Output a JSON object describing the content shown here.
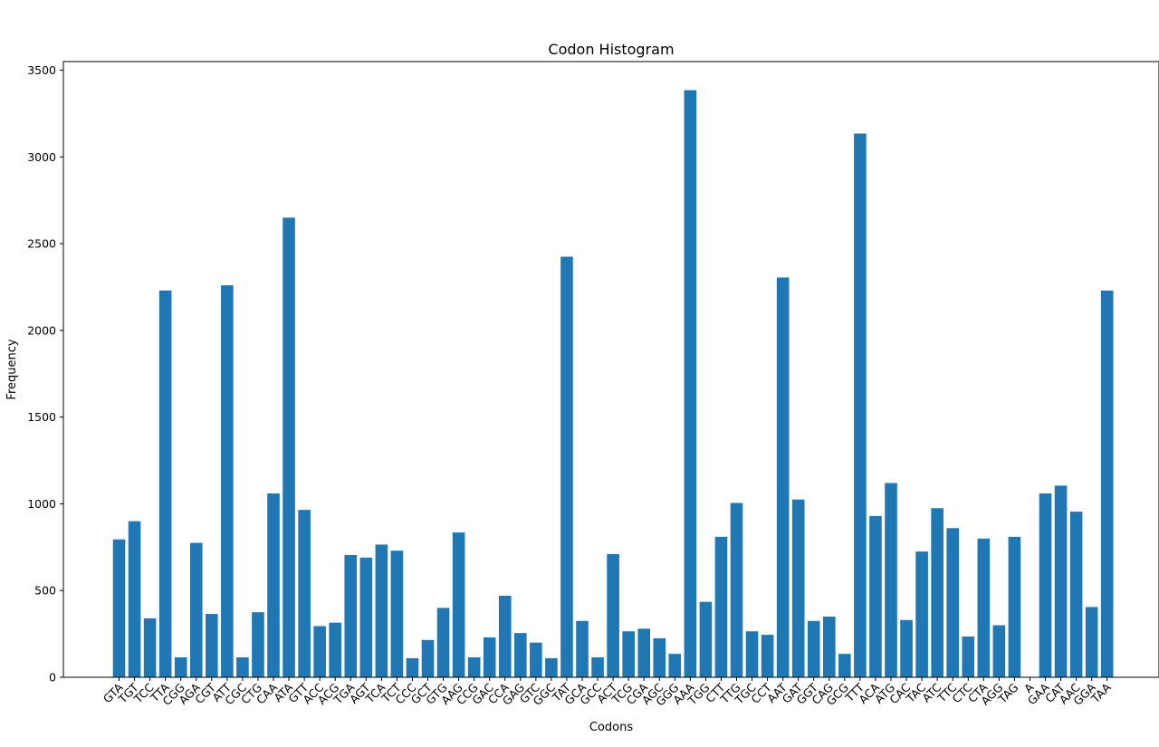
{
  "chart_data": {
    "type": "bar",
    "title": "Codon Histogram",
    "xlabel": "Codons",
    "ylabel": "Frequency",
    "ylim": [
      0,
      3550
    ],
    "yticks": [
      0,
      500,
      1000,
      1500,
      2000,
      2500,
      3000,
      3500
    ],
    "grid": false,
    "bar_color": "#1f77b4",
    "categories": [
      "GTA",
      "TGT",
      "TCC",
      "TTA",
      "CGG",
      "AGA",
      "CGT",
      "ATT",
      "CGC",
      "CTG",
      "CAA",
      "ATA",
      "GTT",
      "ACC",
      "ACG",
      "TGA",
      "AGT",
      "TCA",
      "TCT",
      "CCC",
      "GCT",
      "GTG",
      "AAG",
      "CCG",
      "GAC",
      "CCA",
      "GAG",
      "GTC",
      "GGC",
      "TAT",
      "GCA",
      "GCC",
      "ACT",
      "TCG",
      "CGA",
      "AGC",
      "GGG",
      "AAA",
      "TGG",
      "CTT",
      "TTG",
      "TGC",
      "CCT",
      "AAT",
      "GAT",
      "GGT",
      "CAG",
      "GCG",
      "TTT",
      "ACA",
      "ATG",
      "CAC",
      "TAC",
      "ATC",
      "TTC",
      "CTC",
      "CTA",
      "AGG",
      "TAG",
      "A",
      "GAA",
      "CAT",
      "AAC",
      "GGA",
      "TAA"
    ],
    "values": [
      795,
      900,
      340,
      2230,
      115,
      775,
      365,
      2260,
      115,
      375,
      1060,
      2650,
      965,
      295,
      315,
      705,
      690,
      765,
      730,
      110,
      215,
      400,
      835,
      115,
      230,
      470,
      255,
      200,
      110,
      2425,
      325,
      115,
      710,
      265,
      280,
      225,
      135,
      3385,
      435,
      810,
      1005,
      265,
      245,
      2305,
      1025,
      325,
      350,
      135,
      3135,
      930,
      1120,
      330,
      725,
      975,
      860,
      235,
      800,
      300,
      810,
      1,
      1060,
      1105,
      955,
      405,
      2230
    ]
  }
}
